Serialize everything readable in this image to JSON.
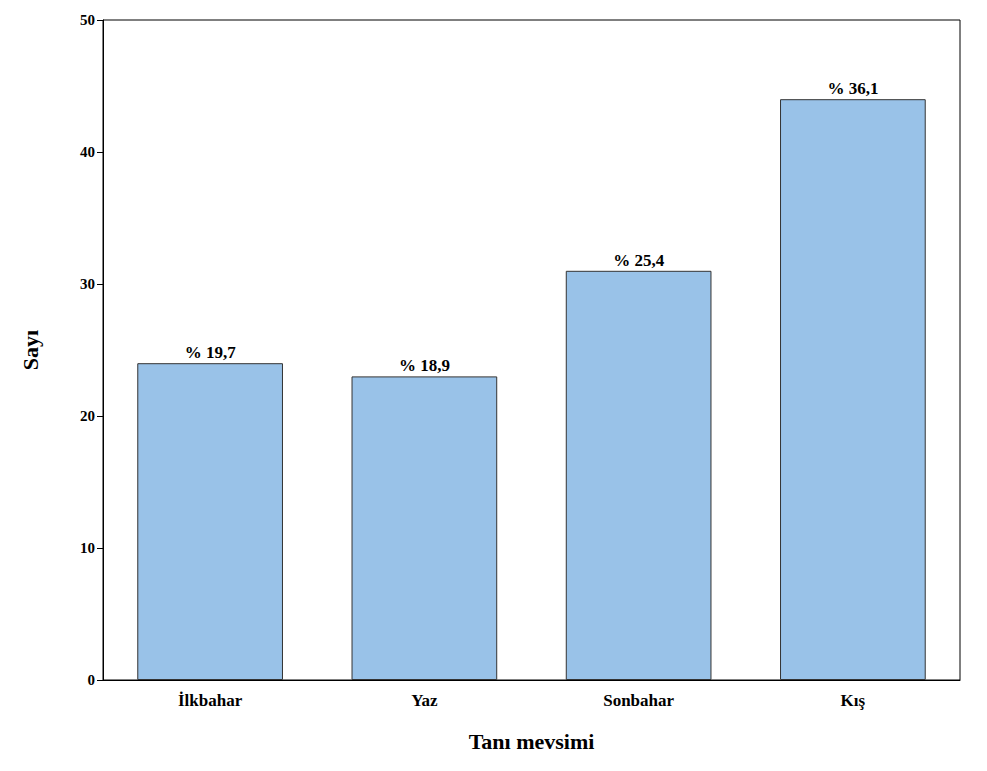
{
  "chart_data": {
    "type": "bar",
    "x_label": "Tanı mevsimi",
    "y_label": "Sayı",
    "categories": [
      "İlkbahar",
      "Yaz",
      "Sonbahar",
      "Kış"
    ],
    "values": [
      24,
      23,
      31,
      44
    ],
    "value_labels": [
      "% 19,7",
      "% 18,9",
      "% 25,4",
      "% 36,1"
    ],
    "data_labels": true,
    "color": "#99c2e8",
    "ylim": [
      0,
      50
    ],
    "yticks": [
      0,
      10,
      20,
      30,
      40,
      50
    ],
    "grid": false
  }
}
